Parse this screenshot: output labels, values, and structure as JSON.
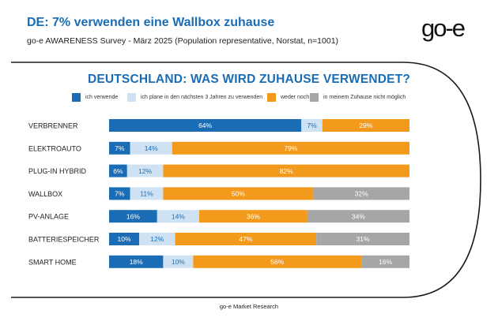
{
  "header": {
    "title": "DE: 7% verwenden eine Wallbox zuhause",
    "subtitle": "go-e AWARENESS Survey - März 2025 (Population representative, Norstat, n=1001)",
    "logo_text": "go-e"
  },
  "footer": {
    "text": "go-e Market Research"
  },
  "colors": {
    "frame": "#1a1a1a",
    "text_dark": "#222222"
  },
  "chart_data": {
    "type": "bar",
    "orientation": "horizontal",
    "stacked": true,
    "title": "DEUTSCHLAND: WAS WIRD ZUHAUSE VERWENDET?",
    "legend_position": "top",
    "grid": false,
    "xlim": [
      0,
      100
    ],
    "categories": [
      "VERBRENNER",
      "ELEKTROAUTO",
      "PLUG-IN HYBRID",
      "WALLBOX",
      "PV-ANLAGE",
      "BATTERIESPEICHER",
      "SMART HOME"
    ],
    "series": [
      {
        "name": "ich verwende",
        "color": "#1a6db5",
        "label_color": "#ffffff",
        "values": [
          64,
          7,
          6,
          7,
          16,
          10,
          18
        ],
        "labels": [
          "64%",
          "7%",
          "6%",
          "7%",
          "16%",
          "10%",
          "18%"
        ]
      },
      {
        "name": "ich plane in den nächsten 3 Jahren zu verwenden",
        "color": "#cfe2f3",
        "label_color": "#1a6db5",
        "values": [
          7,
          14,
          12,
          11,
          14,
          12,
          10
        ],
        "labels": [
          "7%",
          "14%",
          "12%",
          "11%",
          "14%",
          "12%",
          "10%"
        ]
      },
      {
        "name": "weder noch",
        "color": "#f39a1c",
        "label_color": "#ffffff",
        "values": [
          29,
          79,
          82,
          50,
          36,
          47,
          56
        ],
        "labels": [
          "29%",
          "79%",
          "82%",
          "50%",
          "36%",
          "47%",
          "56%"
        ]
      },
      {
        "name": "in meinem Zuhause nicht möglich",
        "color": "#a6a6a6",
        "label_color": "#ffffff",
        "values": [
          0,
          0,
          0,
          32,
          34,
          31,
          16
        ],
        "labels": [
          "",
          "",
          "",
          "32%",
          "34%",
          "31%",
          "16%"
        ]
      }
    ]
  }
}
